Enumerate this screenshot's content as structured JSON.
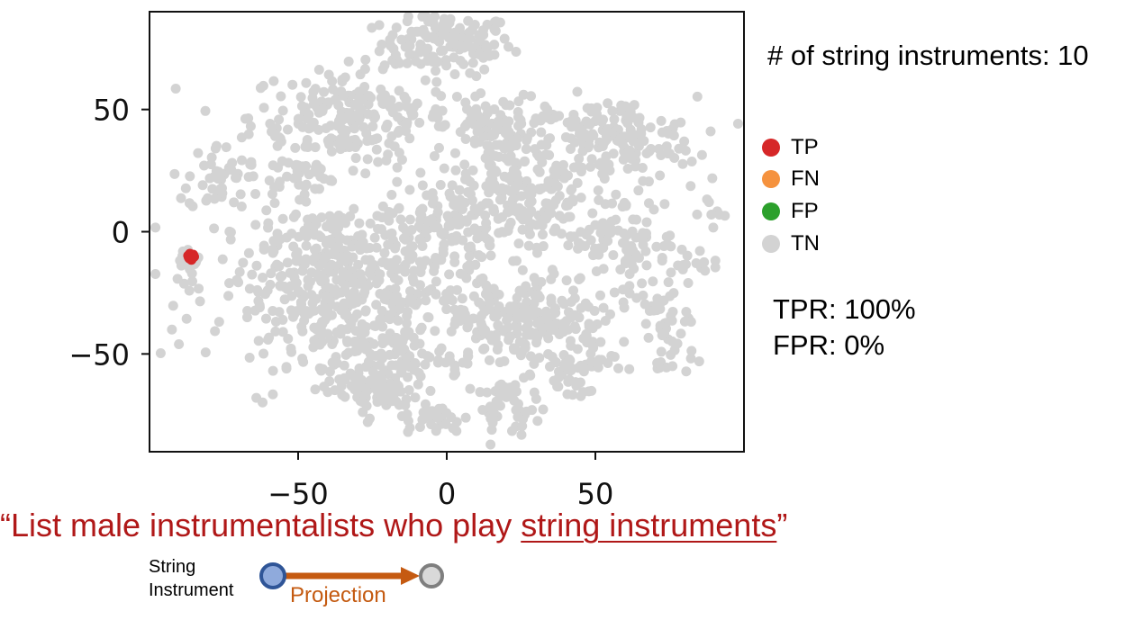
{
  "chart_data": {
    "type": "scatter",
    "title": "",
    "xlabel": "",
    "ylabel": "",
    "xlim": [
      -100,
      100
    ],
    "ylim": [
      -90,
      90
    ],
    "x_ticks": [
      -50,
      0,
      50
    ],
    "x_tick_labels": [
      "−50",
      "0",
      "50"
    ],
    "y_ticks": [
      50,
      0,
      -50
    ],
    "y_tick_labels": [
      "50",
      "0",
      "−50"
    ],
    "grid": false,
    "legend_position": "right",
    "series": [
      {
        "name": "TN",
        "color": "#d3d3d3",
        "clusters": [
          {
            "x": 0,
            "y": 77,
            "sx": 11,
            "sy": 6,
            "n": 130
          },
          {
            "x": -32,
            "y": 47,
            "sx": 17,
            "sy": 10,
            "n": 230
          },
          {
            "x": 13,
            "y": 44,
            "sx": 7,
            "sy": 6,
            "n": 40
          },
          {
            "x": 23,
            "y": 34,
            "sx": 9,
            "sy": 9,
            "n": 100
          },
          {
            "x": 56,
            "y": 37,
            "sx": 14,
            "sy": 9,
            "n": 170
          },
          {
            "x": -77,
            "y": 22,
            "sx": 5,
            "sy": 7,
            "n": 45
          },
          {
            "x": -50,
            "y": 23,
            "sx": 6,
            "sy": 4,
            "n": 30
          },
          {
            "x": 0,
            "y": 5,
            "sx": 10,
            "sy": 8,
            "n": 90
          },
          {
            "x": 30,
            "y": 8,
            "sx": 11,
            "sy": 9,
            "n": 110
          },
          {
            "x": 58,
            "y": -5,
            "sx": 10,
            "sy": 10,
            "n": 90
          },
          {
            "x": -34,
            "y": -20,
            "sx": 22,
            "sy": 17,
            "n": 520
          },
          {
            "x": -22,
            "y": -50,
            "sx": 11,
            "sy": 11,
            "n": 120
          },
          {
            "x": -23,
            "y": -66,
            "sx": 7,
            "sy": 5,
            "n": 50
          },
          {
            "x": 16,
            "y": -37,
            "sx": 8,
            "sy": 10,
            "n": 90
          },
          {
            "x": 35,
            "y": -36,
            "sx": 9,
            "sy": 11,
            "n": 110
          },
          {
            "x": 43,
            "y": -56,
            "sx": 7,
            "sy": 7,
            "n": 50
          },
          {
            "x": 20,
            "y": -72,
            "sx": 5,
            "sy": 5,
            "n": 40
          },
          {
            "x": -3,
            "y": -77,
            "sx": 5,
            "sy": 3,
            "n": 30
          },
          {
            "x": 72,
            "y": -33,
            "sx": 5,
            "sy": 6,
            "n": 30
          },
          {
            "x": 75,
            "y": -50,
            "sx": 4,
            "sy": 5,
            "n": 20
          },
          {
            "x": 80,
            "y": -12,
            "sx": 5,
            "sy": 4,
            "n": 15
          },
          {
            "x": 88,
            "y": 8,
            "sx": 3,
            "sy": 3,
            "n": 8
          },
          {
            "x": -86,
            "y": -12,
            "sx": 1.8,
            "sy": 2,
            "n": 22
          }
        ]
      },
      {
        "name": "TP",
        "color": "#d62728",
        "points": [
          {
            "x": -86,
            "y": -10
          },
          {
            "x": -85.3,
            "y": -9.4
          },
          {
            "x": -86.8,
            "y": -10.5
          },
          {
            "x": -85.7,
            "y": -11
          },
          {
            "x": -86.4,
            "y": -9
          },
          {
            "x": -85,
            "y": -10.2
          },
          {
            "x": -87,
            "y": -9.8
          },
          {
            "x": -85.9,
            "y": -11.5
          },
          {
            "x": -86.6,
            "y": -10.9
          },
          {
            "x": -85.4,
            "y": -10.6
          }
        ]
      },
      {
        "name": "FN",
        "color": "#f5923e",
        "points": []
      },
      {
        "name": "FP",
        "color": "#2ca02c",
        "points": []
      }
    ]
  },
  "count_text": "# of string instruments: 10",
  "legend": [
    {
      "label": "TP",
      "color": "#d62728"
    },
    {
      "label": "FN",
      "color": "#f5923e"
    },
    {
      "label": "FP",
      "color": "#2ca02c"
    },
    {
      "label": "TN",
      "color": "#d3d3d3"
    }
  ],
  "metrics": {
    "tpr": "TPR: 100%",
    "fpr": "FPR: 0%"
  },
  "query": {
    "open_quote": "“",
    "prefix": "List male instrumentalists who play ",
    "highlight": "string instruments",
    "close_quote": "”"
  },
  "projection": {
    "source_line1": "String",
    "source_line2": "Instrument",
    "arrow_label": "Projection",
    "source_color": "#8faadc",
    "source_stroke": "#2f5597",
    "target_color": "#d9d9d9",
    "target_stroke": "#7f7f7f",
    "arrow_color": "#c55a11"
  }
}
